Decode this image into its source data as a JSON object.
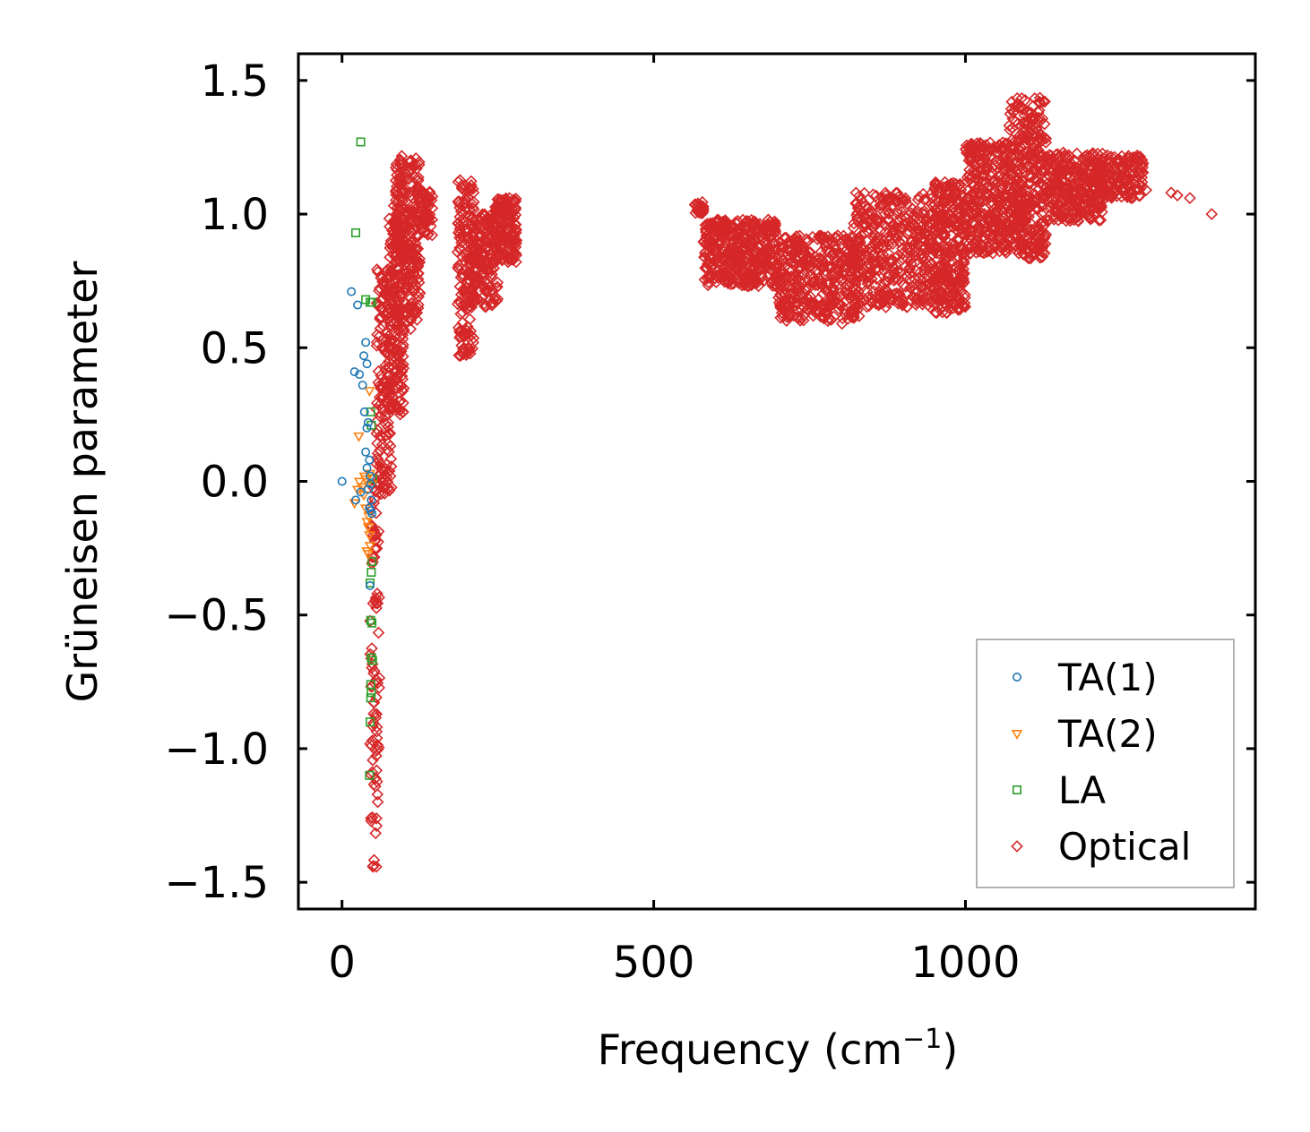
{
  "chart_data": {
    "type": "scatter",
    "xlabel": "Frequency (cm",
    "xlabel_superscript": "−1",
    "xlabel_suffix": ")",
    "ylabel": "Grüneisen parameter",
    "xlim": [
      -70,
      1465
    ],
    "ylim": [
      -1.6,
      1.6
    ],
    "x_ticks": [
      0,
      500,
      1000
    ],
    "x_tick_labels": [
      "0",
      "500",
      "1000"
    ],
    "y_ticks": [
      -1.5,
      -1.0,
      -0.5,
      0.0,
      0.5,
      1.0,
      1.5
    ],
    "y_tick_labels": [
      "−1.5",
      "−1.0",
      "−0.5",
      "0.0",
      "0.5",
      "1.0",
      "1.5"
    ],
    "legend_position": "bottom-right",
    "series": [
      {
        "name": "TA(1)",
        "marker": "circle",
        "color": "#1f77b4",
        "points": [
          [
            0,
            0.0
          ],
          [
            15,
            0.71
          ],
          [
            25,
            0.66
          ],
          [
            20,
            0.41
          ],
          [
            28,
            0.4
          ],
          [
            33,
            0.36
          ],
          [
            35,
            0.47
          ],
          [
            38,
            0.52
          ],
          [
            40,
            0.44
          ],
          [
            36,
            0.26
          ],
          [
            42,
            0.22
          ],
          [
            40,
            0.2
          ],
          [
            38,
            0.11
          ],
          [
            44,
            0.08
          ],
          [
            40,
            0.05
          ],
          [
            45,
            0.02
          ],
          [
            46,
            -0.01
          ],
          [
            42,
            -0.03
          ],
          [
            47,
            -0.07
          ],
          [
            44,
            -0.1
          ],
          [
            46,
            -0.11
          ],
          [
            48,
            -0.12
          ],
          [
            45,
            -0.39
          ],
          [
            22,
            -0.07
          ],
          [
            30,
            -0.04
          ]
        ]
      },
      {
        "name": "TA(2)",
        "marker": "triangle-down",
        "color": "#ff7f0e",
        "points": [
          [
            20,
            -0.08
          ],
          [
            25,
            -0.03
          ],
          [
            28,
            0.0
          ],
          [
            32,
            -0.02
          ],
          [
            35,
            -0.05
          ],
          [
            38,
            -0.1
          ],
          [
            40,
            -0.15
          ],
          [
            42,
            -0.17
          ],
          [
            44,
            -0.2
          ],
          [
            45,
            -0.24
          ],
          [
            40,
            -0.26
          ],
          [
            42,
            -0.27
          ],
          [
            38,
            0.01
          ],
          [
            36,
            0.02
          ],
          [
            44,
            0.34
          ],
          [
            27,
            0.17
          ],
          [
            43,
            -0.13
          ],
          [
            45,
            0.03
          ],
          [
            48,
            -0.01
          ]
        ]
      },
      {
        "name": "LA",
        "marker": "square",
        "color": "#2ca02c",
        "points": [
          [
            30,
            1.27
          ],
          [
            22,
            0.93
          ],
          [
            38,
            0.68
          ],
          [
            45,
            0.67
          ],
          [
            48,
            0.67
          ],
          [
            46,
            0.26
          ],
          [
            47,
            0.21
          ],
          [
            49,
            0.01
          ],
          [
            48,
            -0.3
          ],
          [
            47,
            -0.34
          ],
          [
            45,
            -0.38
          ],
          [
            46,
            -0.52
          ],
          [
            48,
            -0.53
          ],
          [
            47,
            -0.66
          ],
          [
            49,
            -0.67
          ],
          [
            46,
            -0.76
          ],
          [
            47,
            -0.79
          ],
          [
            46,
            -0.81
          ],
          [
            45,
            -0.9
          ],
          [
            44,
            -1.1
          ]
        ]
      },
      {
        "name": "Optical",
        "marker": "diamond",
        "color": "#d62728",
        "clusters": [
          {
            "x_range": [
              45,
              60
            ],
            "y_range": [
              -1.45,
              0.0
            ],
            "points": 90
          },
          {
            "x_range": [
              55,
              80
            ],
            "y_range": [
              -0.05,
              0.8
            ],
            "points": 160
          },
          {
            "x_range": [
              75,
              100
            ],
            "y_range": [
              0.25,
              1.05
            ],
            "points": 180
          },
          {
            "x_range": [
              85,
              125
            ],
            "y_range": [
              0.6,
              1.22
            ],
            "points": 260
          },
          {
            "x_range": [
              120,
              145
            ],
            "y_range": [
              0.92,
              1.1
            ],
            "points": 60
          },
          {
            "x_range": [
              185,
              212
            ],
            "y_range": [
              0.47,
              1.13
            ],
            "points": 150
          },
          {
            "x_range": [
              205,
              250
            ],
            "y_range": [
              0.65,
              1.0
            ],
            "points": 180
          },
          {
            "x_range": [
              245,
              280
            ],
            "y_range": [
              0.82,
              1.06
            ],
            "points": 150
          },
          {
            "x_range": [
              565,
              580
            ],
            "y_range": [
              1.0,
              1.05
            ],
            "points": 25
          },
          {
            "x_range": [
              580,
              700
            ],
            "y_range": [
              0.73,
              0.98
            ],
            "points": 420
          },
          {
            "x_range": [
              700,
              830
            ],
            "y_range": [
              0.6,
              0.92
            ],
            "points": 420
          },
          {
            "x_range": [
              820,
              950
            ],
            "y_range": [
              0.65,
              1.08
            ],
            "points": 420
          },
          {
            "x_range": [
              950,
              1000
            ],
            "y_range": [
              0.63,
              1.12
            ],
            "points": 300
          },
          {
            "x_range": [
              1000,
              1070
            ],
            "y_range": [
              0.85,
              1.27
            ],
            "points": 320
          },
          {
            "x_range": [
              1070,
              1130
            ],
            "y_range": [
              0.83,
              1.44
            ],
            "points": 360
          },
          {
            "x_range": [
              1130,
              1220
            ],
            "y_range": [
              0.97,
              1.23
            ],
            "points": 320
          },
          {
            "x_range": [
              1215,
              1285
            ],
            "y_range": [
              1.06,
              1.22
            ],
            "points": 160
          }
        ],
        "extra_points": [
          [
            1330,
            1.08
          ],
          [
            1340,
            1.07
          ],
          [
            1360,
            1.06
          ],
          [
            1395,
            1.0
          ],
          [
            970,
            0.63
          ],
          [
            940,
            0.66
          ],
          [
            802,
            0.59
          ],
          [
            190,
            0.47
          ],
          [
            110,
            0.57
          ],
          [
            1210,
            1.13
          ],
          [
            1250,
            1.14
          ],
          [
            1290,
            1.09
          ]
        ]
      }
    ]
  }
}
